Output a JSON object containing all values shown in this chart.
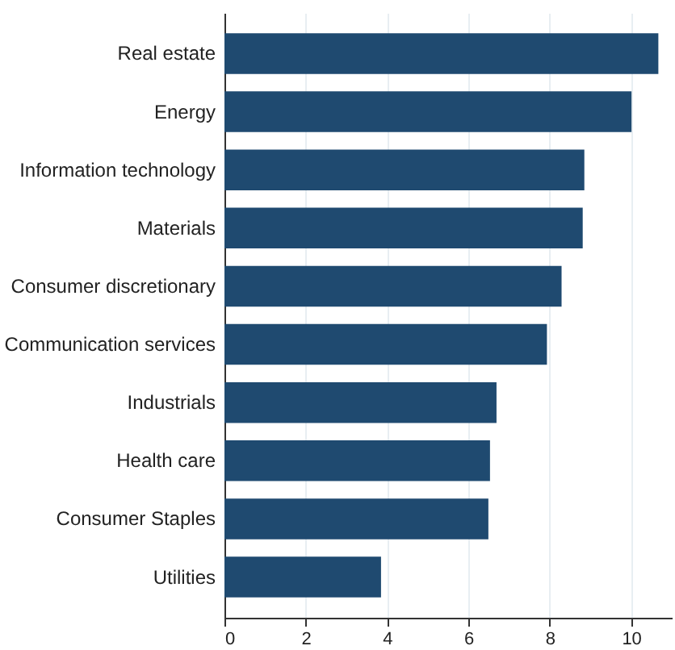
{
  "chart_data": {
    "type": "bar",
    "orientation": "horizontal",
    "categories": [
      "Real estate",
      "Energy",
      "Information technology",
      "Materials",
      "Consumer discretionary",
      "Communication services",
      "Industrials",
      "Health care",
      "Consumer Staples",
      "Utilities"
    ],
    "values": [
      10.67,
      10.01,
      8.85,
      8.81,
      8.29,
      7.93,
      6.69,
      6.53,
      6.49,
      3.85
    ],
    "color": "#1f4a70",
    "xlim": [
      0,
      11
    ],
    "xticks": [
      0,
      2,
      4,
      6,
      8,
      10
    ],
    "grid": "x"
  }
}
